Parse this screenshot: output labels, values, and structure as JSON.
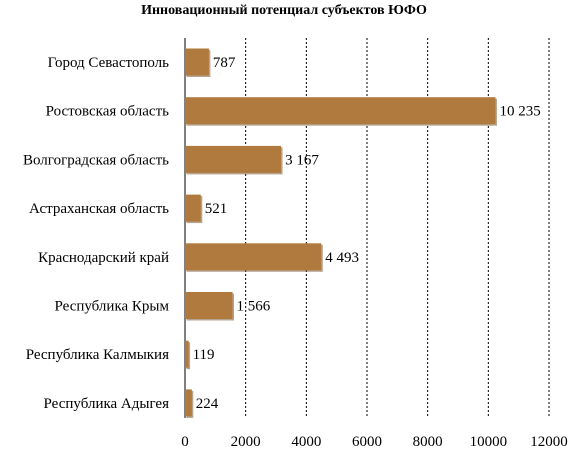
{
  "chart_data": {
    "type": "bar",
    "orientation": "horizontal",
    "title": "Инновационный потенциал субъектов ЮФО",
    "categories": [
      "Город Севастополь",
      "Ростовская область",
      "Волгоградская область",
      "Астраханская область",
      "Краснодарский край",
      "Республика Крым",
      "Республика Калмыкия",
      "Республика Адыгея"
    ],
    "values": [
      787,
      10235,
      3167,
      521,
      4493,
      1566,
      119,
      224
    ],
    "data_labels": [
      "787",
      "10 235",
      "3 167",
      "521",
      "4 493",
      "1 566",
      "119",
      "224"
    ],
    "xlim": [
      0,
      12000
    ],
    "x_ticks": [
      0,
      2000,
      4000,
      6000,
      8000,
      10000,
      12000
    ],
    "x_tick_labels": [
      "0",
      "2000",
      "4000",
      "6000",
      "8000",
      "10000",
      "12000"
    ],
    "grid": true,
    "legend": false,
    "bar_color": "#B07A3E"
  }
}
